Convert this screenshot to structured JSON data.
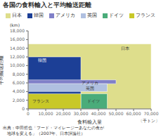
{
  "chart_data": {
    "type": "rectangles",
    "title": "各国の食料輸入と平均輸送距離",
    "xlabel": "食料輸入量",
    "x_unit": "〔千トン〕",
    "ylabel": "平均輸送距離",
    "y_unit": "(km)",
    "source": [
      "出典：中田哲也「フード・マイレージーあなたの食が",
      "　地球を変える」（2007年、日本評論社）"
    ],
    "series": [
      {
        "name": "日本",
        "color": "#dede8c",
        "x": 0,
        "width": 70000,
        "y": 0,
        "height": 15000,
        "label_x": 55000,
        "label_y": 14000,
        "text_color": "#333333"
      },
      {
        "name": "韓国",
        "color": "#1c3f96",
        "x": 0,
        "width": 30000,
        "y": 0,
        "height": 12000,
        "label_x": 8000,
        "label_y": 11200,
        "text_color": "#ffffff"
      },
      {
        "name": "アメリカ",
        "color": "#8080c8",
        "x": 0,
        "width": 50000,
        "y": 5800,
        "height": 900,
        "label_x": 35000,
        "label_y": 6150,
        "text_color": "#333333"
      },
      {
        "name": "英国",
        "color": "#b0c0e0",
        "x": 0,
        "width": 45000,
        "y": 4000,
        "height": 1800,
        "label_x": 35000,
        "label_y": 4800,
        "text_color": "#333333"
      },
      {
        "name": "ドイツ",
        "color": "#4aac7a",
        "x": 30000,
        "width": 15000,
        "y": 0,
        "height": 3500,
        "label_x": 37000,
        "label_y": 1800,
        "text_color": "#333333"
      },
      {
        "name": "フランス",
        "color": "#c8c828",
        "x": 0,
        "width": 30000,
        "y": 0,
        "height": 3500,
        "label_x": 7000,
        "label_y": 1800,
        "text_color": "#333333"
      }
    ],
    "xlim": [
      0,
      70000
    ],
    "ylim": [
      0,
      18000
    ],
    "xticks": [
      0,
      {
        "value": 10000,
        "label": "10,000"
      },
      {
        "value": 20000,
        "label": "20,000"
      },
      {
        "value": 30000,
        "label": "30,000"
      },
      {
        "value": 40000,
        "label": "40,000"
      },
      {
        "value": 50000,
        "label": "50,000"
      },
      {
        "value": 60000,
        "label": "60,000"
      },
      {
        "value": 70000,
        "label": "70,000"
      }
    ],
    "yticks": [
      0,
      {
        "value": 2000,
        "label": "2,000"
      },
      {
        "value": 4000,
        "label": "4,000"
      },
      {
        "value": 6000,
        "label": "6,000"
      },
      {
        "value": 8000,
        "label": "8,000"
      },
      {
        "value": 10000,
        "label": "10,000"
      },
      {
        "value": 12000,
        "label": "12,000"
      },
      {
        "value": 14000,
        "label": "14,000"
      },
      {
        "value": 16000,
        "label": "16,000"
      },
      {
        "value": 18000,
        "label": "18,000"
      }
    ],
    "grid": false,
    "legend": "top"
  }
}
